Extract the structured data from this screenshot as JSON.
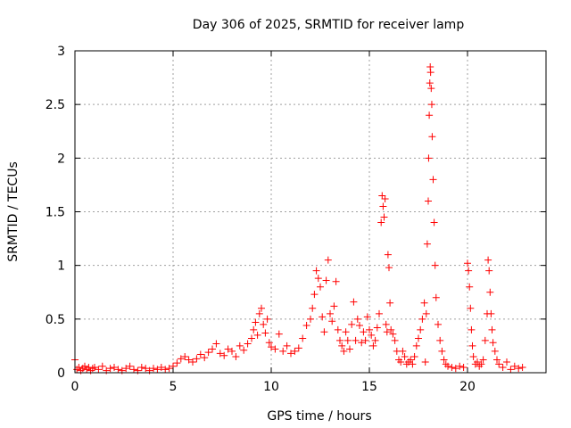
{
  "chart_data": {
    "type": "scatter",
    "title": "Day 306 of 2025, SRMTID for receiver lamp",
    "xlabel": "GPS time / hours",
    "ylabel": "SRMTID / TECUs",
    "xlim": [
      0,
      24
    ],
    "ylim": [
      0,
      3
    ],
    "xticks": [
      0,
      5,
      10,
      15,
      20
    ],
    "xtick_labels": [
      "0",
      "5",
      "10",
      "15",
      "20"
    ],
    "yticks": [
      0,
      0.5,
      1,
      1.5,
      2,
      2.5,
      3
    ],
    "ytick_labels": [
      "0",
      "0.5",
      "1",
      "1.5",
      "2",
      "2.5",
      "3"
    ],
    "grid": true,
    "marker": "+",
    "color": "#ff0000",
    "series": [
      {
        "name": "SRMTID",
        "x": [
          0.0,
          0.1,
          0.2,
          0.3,
          0.4,
          0.5,
          0.6,
          0.7,
          0.8,
          0.9,
          1.0,
          1.2,
          1.4,
          1.6,
          1.8,
          2.0,
          2.2,
          2.4,
          2.6,
          2.8,
          3.0,
          3.2,
          3.4,
          3.6,
          3.8,
          4.0,
          4.2,
          4.4,
          4.6,
          4.8,
          5.0,
          5.2,
          5.4,
          5.6,
          5.8,
          6.0,
          6.2,
          6.4,
          6.6,
          6.8,
          7.0,
          7.2,
          7.4,
          7.6,
          7.8,
          8.0,
          8.2,
          8.4,
          8.6,
          8.8,
          9.0,
          9.1,
          9.2,
          9.3,
          9.4,
          9.5,
          9.6,
          9.7,
          9.8,
          9.9,
          10.0,
          10.2,
          10.4,
          10.6,
          10.8,
          11.0,
          11.2,
          11.4,
          11.6,
          11.8,
          12.0,
          12.1,
          12.2,
          12.3,
          12.4,
          12.5,
          12.6,
          12.7,
          12.8,
          12.9,
          13.0,
          13.1,
          13.2,
          13.3,
          13.4,
          13.5,
          13.6,
          13.7,
          13.8,
          13.9,
          14.0,
          14.1,
          14.2,
          14.3,
          14.4,
          14.5,
          14.6,
          14.7,
          14.8,
          14.9,
          15.0,
          15.1,
          15.2,
          15.3,
          15.4,
          15.5,
          15.6,
          15.65,
          15.7,
          15.75,
          15.8,
          15.85,
          15.9,
          15.95,
          16.0,
          16.05,
          16.1,
          16.2,
          16.3,
          16.4,
          16.5,
          16.6,
          16.7,
          16.8,
          16.9,
          17.0,
          17.1,
          17.2,
          17.3,
          17.4,
          17.5,
          17.6,
          17.7,
          17.8,
          17.85,
          17.9,
          17.95,
          18.0,
          18.02,
          18.05,
          18.08,
          18.1,
          18.12,
          18.15,
          18.18,
          18.2,
          18.25,
          18.3,
          18.35,
          18.4,
          18.5,
          18.6,
          18.7,
          18.8,
          18.9,
          19.0,
          19.2,
          19.4,
          19.6,
          19.8,
          20.0,
          20.05,
          20.1,
          20.15,
          20.2,
          20.25,
          20.3,
          20.4,
          20.5,
          20.6,
          20.7,
          20.8,
          20.9,
          21.0,
          21.05,
          21.1,
          21.15,
          21.2,
          21.25,
          21.3,
          21.4,
          21.5,
          21.6,
          21.8,
          22.0,
          22.2,
          22.4,
          22.6,
          22.8
        ],
        "y": [
          0.12,
          0.03,
          0.05,
          0.02,
          0.04,
          0.06,
          0.03,
          0.05,
          0.02,
          0.04,
          0.05,
          0.03,
          0.06,
          0.02,
          0.04,
          0.05,
          0.03,
          0.02,
          0.04,
          0.06,
          0.03,
          0.02,
          0.05,
          0.04,
          0.02,
          0.04,
          0.03,
          0.05,
          0.03,
          0.04,
          0.06,
          0.09,
          0.13,
          0.15,
          0.12,
          0.1,
          0.13,
          0.17,
          0.14,
          0.19,
          0.22,
          0.27,
          0.18,
          0.16,
          0.22,
          0.2,
          0.15,
          0.25,
          0.21,
          0.27,
          0.32,
          0.4,
          0.47,
          0.35,
          0.55,
          0.6,
          0.45,
          0.37,
          0.5,
          0.28,
          0.24,
          0.22,
          0.36,
          0.2,
          0.25,
          0.18,
          0.2,
          0.23,
          0.32,
          0.44,
          0.5,
          0.6,
          0.73,
          0.95,
          0.88,
          0.8,
          0.52,
          0.38,
          0.86,
          1.05,
          0.55,
          0.48,
          0.62,
          0.85,
          0.4,
          0.3,
          0.25,
          0.2,
          0.38,
          0.3,
          0.22,
          0.45,
          0.66,
          0.3,
          0.5,
          0.44,
          0.28,
          0.38,
          0.3,
          0.52,
          0.4,
          0.35,
          0.25,
          0.3,
          0.42,
          0.55,
          1.4,
          1.65,
          1.55,
          1.45,
          1.62,
          0.45,
          0.38,
          1.1,
          0.98,
          0.65,
          0.4,
          0.36,
          0.3,
          0.2,
          0.12,
          0.1,
          0.2,
          0.15,
          0.08,
          0.1,
          0.12,
          0.08,
          0.15,
          0.25,
          0.32,
          0.4,
          0.5,
          0.65,
          0.1,
          0.55,
          1.2,
          1.6,
          2.0,
          2.4,
          2.7,
          2.85,
          2.8,
          2.65,
          2.5,
          2.2,
          1.8,
          1.4,
          1.0,
          0.7,
          0.45,
          0.3,
          0.2,
          0.12,
          0.08,
          0.06,
          0.05,
          0.04,
          0.06,
          0.05,
          1.02,
          0.95,
          0.8,
          0.6,
          0.4,
          0.25,
          0.15,
          0.08,
          0.1,
          0.06,
          0.08,
          0.12,
          0.3,
          0.55,
          1.05,
          0.95,
          0.75,
          0.55,
          0.4,
          0.28,
          0.2,
          0.12,
          0.08,
          0.05,
          0.1,
          0.03,
          0.06,
          0.04,
          0.05
        ]
      }
    ]
  }
}
